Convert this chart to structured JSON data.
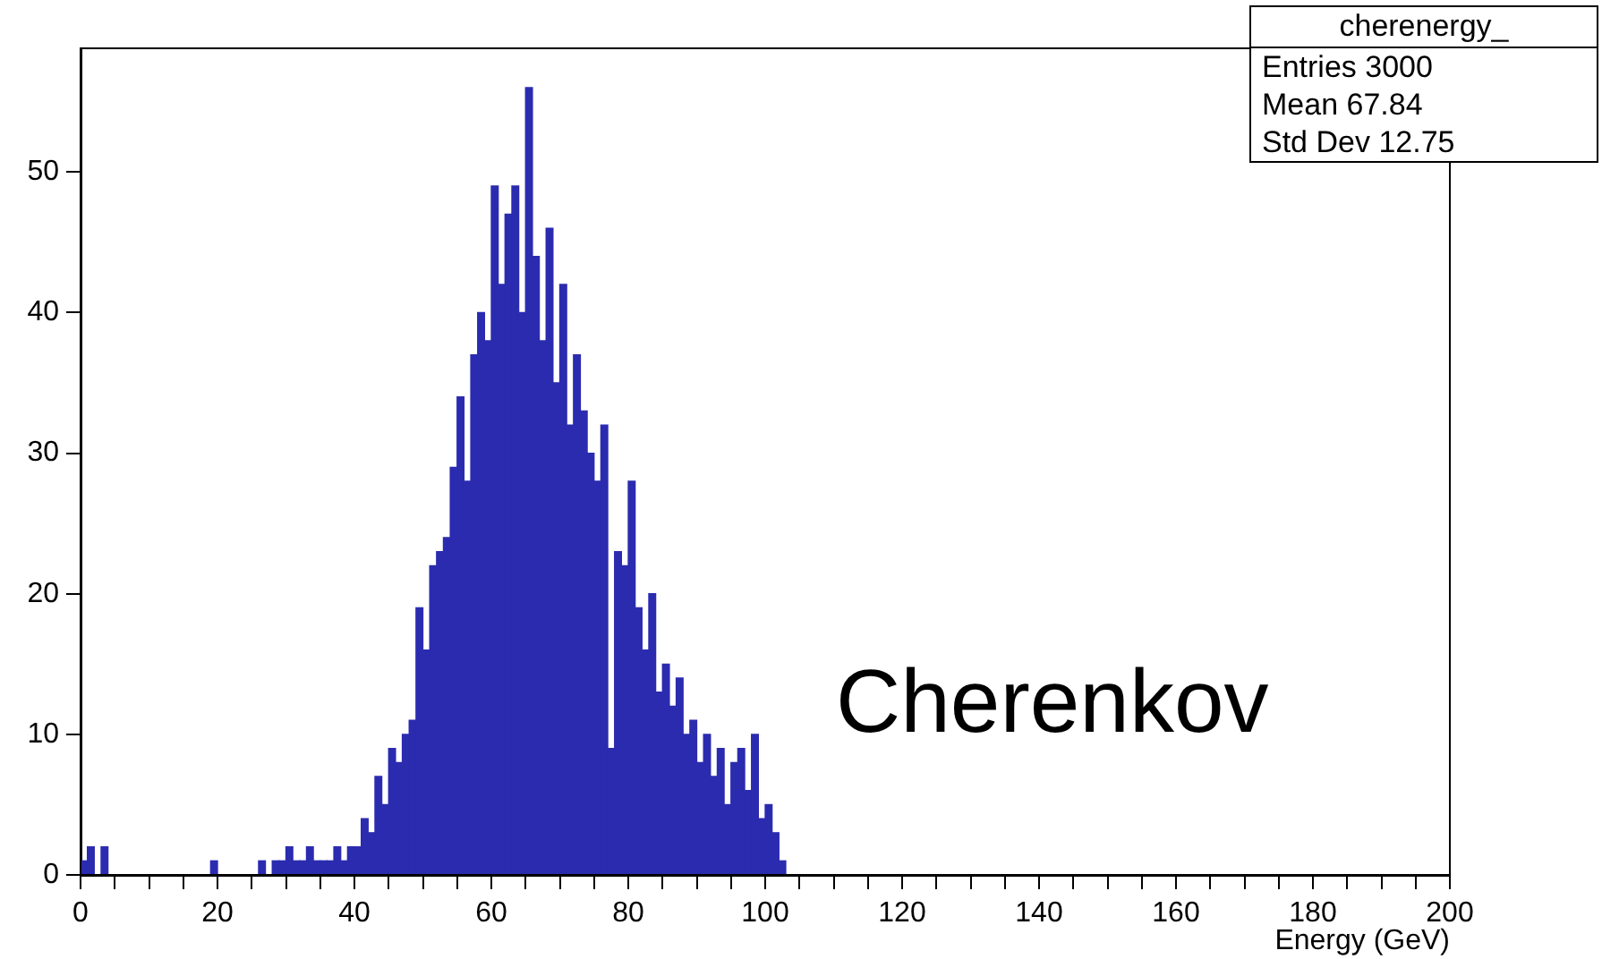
{
  "chart_data": {
    "type": "histogram",
    "xlabel": "Energy (GeV)",
    "bins": [
      0,
      1,
      2,
      3,
      4,
      5,
      6,
      7,
      8,
      9,
      10,
      11,
      12,
      13,
      14,
      15,
      16,
      17,
      18,
      19,
      20,
      21,
      22,
      23,
      24,
      25,
      26,
      27,
      28,
      29,
      30,
      31,
      32,
      33,
      34,
      35,
      36,
      37,
      38,
      39,
      40,
      41,
      42,
      43,
      44,
      45,
      46,
      47,
      48,
      49,
      50,
      51,
      52,
      53,
      54,
      55,
      56,
      57,
      58,
      59,
      60,
      61,
      62,
      63,
      64,
      65,
      66,
      67,
      68,
      69,
      70,
      71,
      72,
      73,
      74,
      75,
      76,
      77,
      78,
      79,
      80,
      81,
      82,
      83,
      84,
      85,
      86,
      87,
      88,
      89,
      90,
      91,
      92,
      93,
      94,
      95,
      96,
      97,
      98,
      99,
      100,
      101,
      102,
      103,
      104
    ],
    "values": [
      1,
      2,
      0,
      2,
      0,
      0,
      0,
      0,
      0,
      0,
      0,
      0,
      0,
      0,
      0,
      0,
      0,
      0,
      0,
      1,
      0,
      0,
      0,
      0,
      0,
      0,
      1,
      0,
      1,
      1,
      2,
      1,
      1,
      2,
      1,
      1,
      1,
      2,
      1,
      2,
      2,
      4,
      3,
      7,
      5,
      9,
      8,
      10,
      11,
      19,
      16,
      22,
      23,
      24,
      29,
      34,
      28,
      37,
      40,
      38,
      49,
      42,
      47,
      49,
      40,
      56,
      44,
      38,
      46,
      35,
      42,
      32,
      37,
      33,
      30,
      28,
      32,
      9,
      23,
      22,
      28,
      19,
      16,
      20,
      13,
      15,
      12,
      14,
      10,
      11,
      8,
      10,
      7,
      9,
      5,
      8,
      9,
      6,
      10,
      4,
      5,
      3,
      1,
      0
    ],
    "color": "#2b2bb0",
    "xlim": [
      0,
      200
    ],
    "xticks": [
      0,
      {
        "value": 5,
        "label": null
      },
      {
        "value": 10,
        "label": null
      },
      {
        "value": 15,
        "label": null
      },
      20,
      {
        "value": 25,
        "label": null
      },
      {
        "value": 30,
        "label": null
      },
      {
        "value": 35,
        "label": null
      },
      40,
      {
        "value": 45,
        "label": null
      },
      {
        "value": 50,
        "label": null
      },
      {
        "value": 55,
        "label": null
      },
      60,
      {
        "value": 65,
        "label": null
      },
      {
        "value": 70,
        "label": null
      },
      {
        "value": 75,
        "label": null
      },
      80,
      {
        "value": 85,
        "label": null
      },
      {
        "value": 90,
        "label": null
      },
      {
        "value": 95,
        "label": null
      },
      100,
      {
        "value": 105,
        "label": null
      },
      {
        "value": 110,
        "label": null
      },
      {
        "value": 115,
        "label": null
      },
      120,
      {
        "value": 125,
        "label": null
      },
      {
        "value": 130,
        "label": null
      },
      {
        "value": 135,
        "label": null
      },
      140,
      {
        "value": 145,
        "label": null
      },
      {
        "value": 150,
        "label": null
      },
      {
        "value": 155,
        "label": null
      },
      160,
      {
        "value": 165,
        "label": null
      },
      {
        "value": 170,
        "label": null
      },
      {
        "value": 175,
        "label": null
      },
      180,
      {
        "value": 185,
        "label": null
      },
      {
        "value": 190,
        "label": null
      },
      {
        "value": 195,
        "label": null
      },
      200
    ],
    "ylim": [
      0,
      58.8
    ],
    "yticks": [
      0,
      10,
      20,
      30,
      40,
      50
    ],
    "grid": false,
    "legend": false,
    "annotations": [
      "cherenergy_",
      "Entries 3000",
      "Mean 67.84",
      "Std Dev 12.75",
      "Cherenkov"
    ]
  }
}
